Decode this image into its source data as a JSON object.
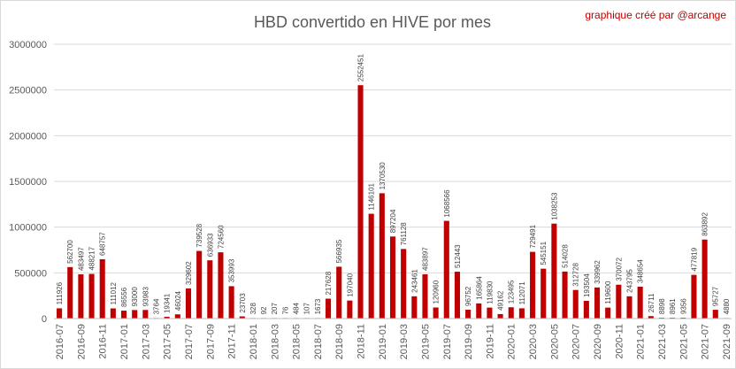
{
  "chart_data": {
    "type": "bar",
    "title": "HBD convertido en HIVE por mes",
    "credit": "graphique créé par @arcange",
    "xlabel": "",
    "ylabel": "",
    "ylim": [
      0,
      3000000
    ],
    "yticks": [
      0,
      500000,
      1000000,
      1500000,
      2000000,
      2500000,
      3000000
    ],
    "grid": true,
    "legend": "none",
    "bar_color": "#c00000",
    "categories": [
      "2016-07",
      "2016-08",
      "2016-09",
      "2016-10",
      "2016-11",
      "2016-12",
      "2017-01",
      "2017-02",
      "2017-03",
      "2017-04",
      "2017-05",
      "2017-06",
      "2017-07",
      "2017-08",
      "2017-09",
      "2017-10",
      "2017-11",
      "2017-12",
      "2018-01",
      "2018-02",
      "2018-03",
      "2018-04",
      "2018-05",
      "2018-06",
      "2018-07",
      "2018-08",
      "2018-09",
      "2018-10",
      "2018-11",
      "2018-12",
      "2019-01",
      "2019-02",
      "2019-03",
      "2019-04",
      "2019-05",
      "2019-06",
      "2019-07",
      "2019-08",
      "2019-09",
      "2019-10",
      "2019-11",
      "2019-12",
      "2020-01",
      "2020-02",
      "2020-03",
      "2020-04",
      "2020-05",
      "2020-06",
      "2020-07",
      "2020-08",
      "2020-09",
      "2020-10",
      "2020-11",
      "2020-12",
      "2021-01",
      "2021-02",
      "2021-03",
      "2021-04",
      "2021-05",
      "2021-06",
      "2021-07",
      "2021-08",
      "2021-09"
    ],
    "tick_labels": [
      "2016-07",
      "2016-09",
      "2016-11",
      "2017-01",
      "2017-03",
      "2017-05",
      "2017-07",
      "2017-09",
      "2017-11",
      "2018-01",
      "2018-03",
      "2018-05",
      "2018-07",
      "2018-09",
      "2018-11",
      "2019-01",
      "2019-03",
      "2019-05",
      "2019-07",
      "2019-09",
      "2019-11",
      "2020-01",
      "2020-03",
      "2020-05",
      "2020-07",
      "2020-09",
      "2020-11",
      "2021-01",
      "2021-03",
      "2021-05",
      "2021-07",
      "2021-09"
    ],
    "values": [
      111926,
      562700,
      483497,
      488217,
      648757,
      111012,
      86556,
      93000,
      93983,
      3764,
      19341,
      46024,
      329602,
      739528,
      636933,
      724560,
      353993,
      23703,
      328,
      92,
      207,
      76,
      484,
      107,
      1673,
      217628,
      566935,
      197040,
      2552451,
      1146101,
      1370530,
      897204,
      761128,
      243461,
      483897,
      120960,
      1068566,
      512443,
      96752,
      165864,
      119830,
      49162,
      123495,
      112071,
      729491,
      545151,
      1038253,
      514028,
      312728,
      193504,
      339962,
      119600,
      370072,
      243795,
      348654,
      26711,
      8898,
      8961,
      9356,
      477819,
      863892,
      95727,
      4880
    ]
  }
}
